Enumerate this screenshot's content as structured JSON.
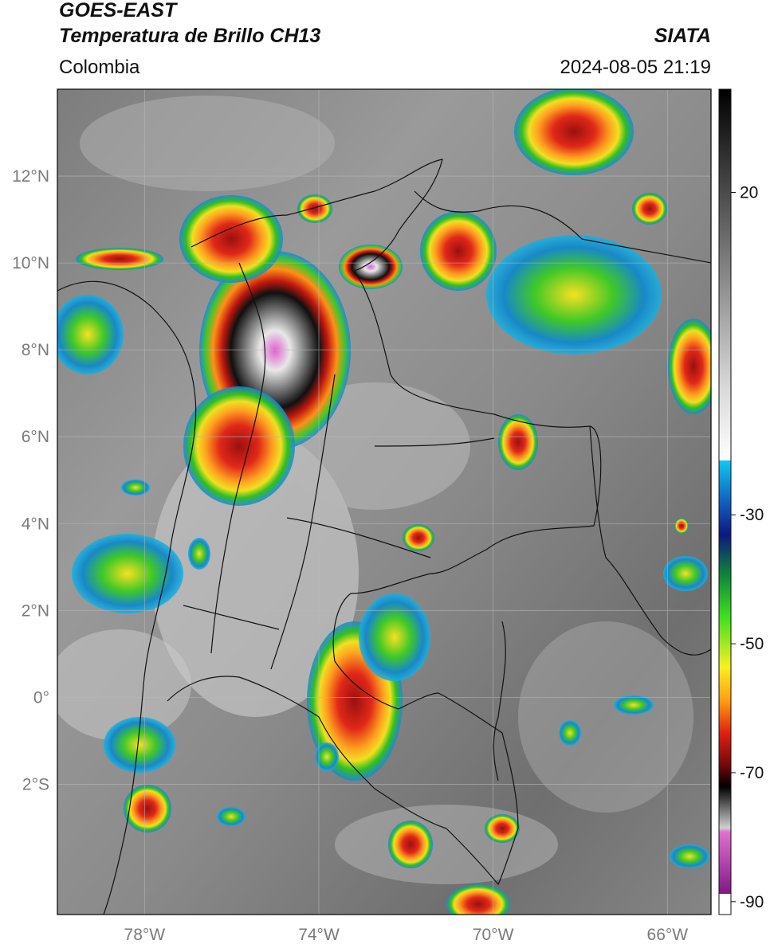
{
  "header": {
    "satellite": "GOES-EAST",
    "product": "Temperatura de Brillo CH13",
    "region": "Colombia",
    "agency": "SIATA",
    "timestamp": "2024-08-05 21:19"
  },
  "map": {
    "lon_range": [
      -80,
      -65
    ],
    "lat_range": [
      -5,
      14
    ],
    "lat_ticks": [
      {
        "value": 12,
        "label": "12°N"
      },
      {
        "value": 10,
        "label": "10°N"
      },
      {
        "value": 8,
        "label": "8°N"
      },
      {
        "value": 6,
        "label": "6°N"
      },
      {
        "value": 4,
        "label": "4°N"
      },
      {
        "value": 2,
        "label": "2°N"
      },
      {
        "value": 0,
        "label": "0°"
      },
      {
        "value": -2,
        "label": "2°S"
      }
    ],
    "lon_ticks": [
      {
        "value": -78,
        "label": "78°W"
      },
      {
        "value": -74,
        "label": "74°W"
      },
      {
        "value": -70,
        "label": "70°W"
      },
      {
        "value": -66,
        "label": "66°W"
      }
    ],
    "grid": true,
    "colors": {
      "cold_core": "#e070d0",
      "overshoot": "#2a2a2a",
      "red": "#cc1a12",
      "orange": "#ff7a10",
      "yellow": "#ffe020",
      "green": "#3ccc20",
      "blue": "#1060d0",
      "cyan": "#10b8e8",
      "background": "#8a8a8a"
    }
  },
  "colorbar": {
    "range": [
      -92,
      36
    ],
    "ticks": [
      {
        "value": 20,
        "label": "20"
      },
      {
        "value": -30,
        "label": "-30"
      },
      {
        "value": -50,
        "label": "-50"
      },
      {
        "value": -70,
        "label": "-70"
      },
      {
        "value": -90,
        "label": "-90"
      }
    ]
  }
}
